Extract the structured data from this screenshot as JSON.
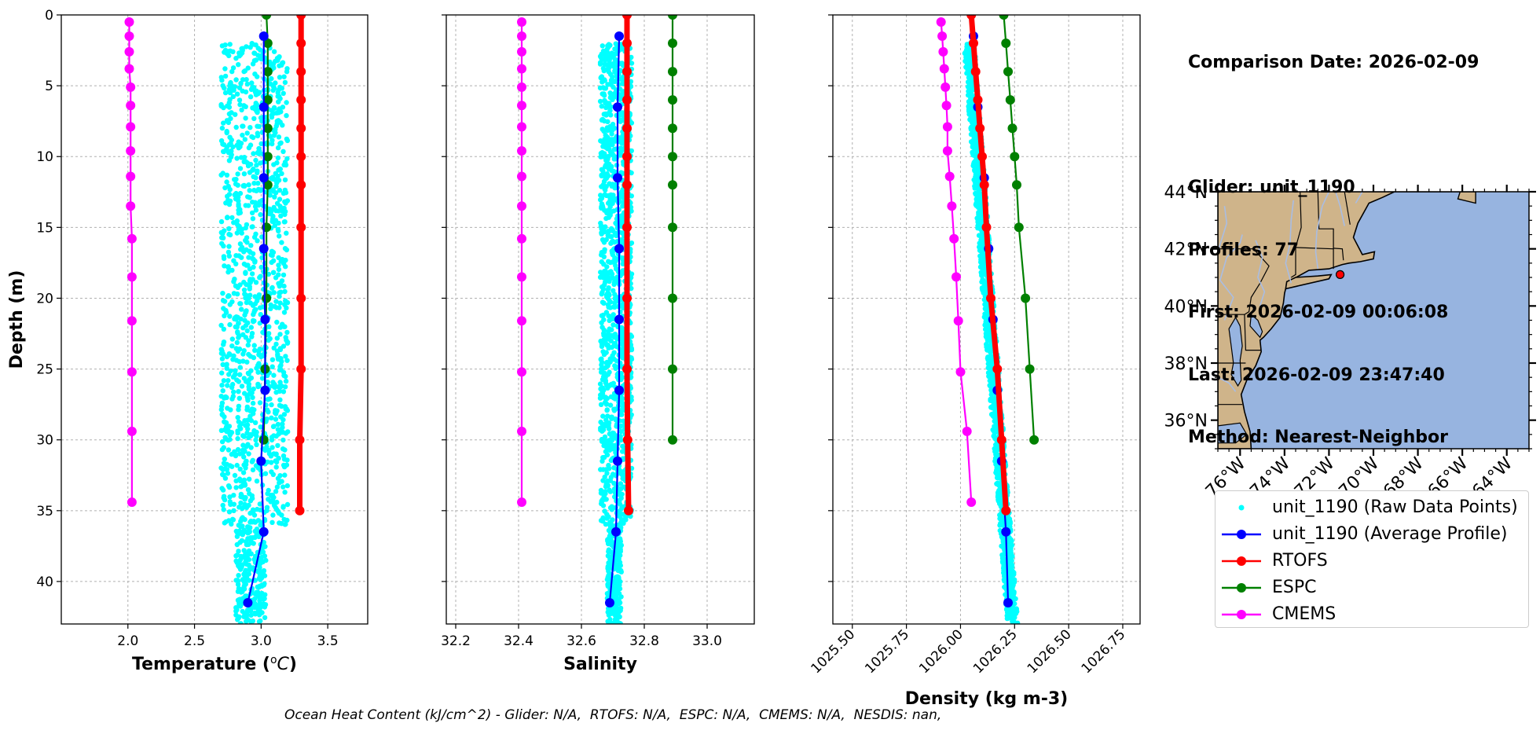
{
  "info": {
    "comparison": "Comparison Date: 2026-02-09",
    "glider": "Glider: unit_1190",
    "profiles": "Profiles: 77",
    "first": "First: 2026-02-09 00:06:08",
    "last": "Last: 2026-02-09 23:47:40",
    "method": "Method: Nearest-Neighbor"
  },
  "footer": "Ocean Heat Content (kJ/cm^2) - Glider: N/A,  RTOFS: N/A,  ESPC: N/A,  CMEMS: N/A,  NESDIS: nan,",
  "colors": {
    "raw": "#00ffff",
    "glider": "#0000ff",
    "rtofs": "#ff0000",
    "espc": "#008000",
    "cmems": "#ff00ff",
    "land": "#cfb48a",
    "ocean": "#97b4e0",
    "rivers": "#a9bde3"
  },
  "legend": [
    {
      "label": "unit_1190 (Raw Data Points)",
      "key": "raw",
      "style": "dots"
    },
    {
      "label": "unit_1190 (Average Profile)",
      "key": "glider",
      "style": "line"
    },
    {
      "label": "RTOFS",
      "key": "rtofs",
      "style": "line"
    },
    {
      "label": "ESPC",
      "key": "espc",
      "style": "line"
    },
    {
      "label": "CMEMS",
      "key": "cmems",
      "style": "line"
    }
  ],
  "chart_data": [
    {
      "type": "line",
      "xlabel": "Temperature (°C)",
      "ylabel": "Depth (m)",
      "xlim": [
        1.5,
        3.8
      ],
      "ylim": [
        43,
        0
      ],
      "xticks": [
        2.0,
        2.5,
        3.0,
        3.5
      ],
      "xtick_labels": [
        "2.0",
        "2.5",
        "3.0",
        "3.5"
      ],
      "yticks": [
        0,
        5,
        10,
        15,
        20,
        25,
        30,
        35,
        40
      ],
      "grid": true,
      "raw_points": {
        "x_range": [
          2.7,
          3.2
        ],
        "depth_range": [
          2,
          43
        ]
      },
      "series": [
        {
          "name": "unit_1190 (Average Profile)",
          "key": "glider",
          "depth": [
            1.5,
            6.5,
            11.5,
            16.5,
            21.5,
            26.5,
            31.5,
            36.5,
            41.5
          ],
          "values": [
            3.02,
            3.02,
            3.02,
            3.02,
            3.03,
            3.03,
            3.0,
            3.02,
            2.9
          ]
        },
        {
          "name": "RTOFS",
          "key": "rtofs",
          "depth": [
            0,
            2,
            4,
            6,
            8,
            10,
            12,
            15,
            20,
            25,
            30,
            35
          ],
          "values": [
            3.3,
            3.3,
            3.3,
            3.3,
            3.3,
            3.3,
            3.3,
            3.3,
            3.3,
            3.3,
            3.29,
            3.29
          ]
        },
        {
          "name": "ESPC",
          "key": "espc",
          "depth": [
            0,
            2,
            4,
            6,
            8,
            10,
            12,
            15,
            20,
            25,
            30
          ],
          "values": [
            3.04,
            3.05,
            3.05,
            3.05,
            3.05,
            3.05,
            3.05,
            3.04,
            3.04,
            3.03,
            3.02
          ]
        },
        {
          "name": "CMEMS",
          "key": "cmems",
          "depth": [
            0.5,
            1.5,
            2.6,
            3.8,
            5.1,
            6.4,
            7.9,
            9.6,
            11.4,
            13.5,
            15.8,
            18.5,
            21.6,
            25.2,
            29.4,
            34.4
          ],
          "values": [
            2.01,
            2.01,
            2.01,
            2.01,
            2.02,
            2.02,
            2.02,
            2.02,
            2.02,
            2.02,
            2.03,
            2.03,
            2.03,
            2.03,
            2.03,
            2.03
          ]
        }
      ]
    },
    {
      "type": "line",
      "xlabel": "Salinity",
      "ylabel": "",
      "xlim": [
        32.17,
        33.15
      ],
      "ylim": [
        43,
        0
      ],
      "xticks": [
        32.2,
        32.4,
        32.6,
        32.8,
        33.0
      ],
      "xtick_labels": [
        "32.2",
        "32.4",
        "32.6",
        "32.8",
        "33.0"
      ],
      "yticks": [
        0,
        5,
        10,
        15,
        20,
        25,
        30,
        35,
        40
      ],
      "grid": true,
      "raw_points": {
        "x_range": [
          32.66,
          32.76
        ],
        "depth_range": [
          2,
          43
        ]
      },
      "series": [
        {
          "name": "unit_1190 (Average Profile)",
          "key": "glider",
          "depth": [
            1.5,
            6.5,
            11.5,
            16.5,
            21.5,
            26.5,
            31.5,
            36.5,
            41.5
          ],
          "values": [
            32.72,
            32.715,
            32.715,
            32.72,
            32.72,
            32.72,
            32.715,
            32.71,
            32.69
          ]
        },
        {
          "name": "RTOFS",
          "key": "rtofs",
          "depth": [
            0,
            2,
            4,
            6,
            8,
            10,
            12,
            15,
            20,
            25,
            30,
            35
          ],
          "values": [
            32.745,
            32.745,
            32.745,
            32.745,
            32.745,
            32.745,
            32.745,
            32.745,
            32.745,
            32.745,
            32.747,
            32.75
          ]
        },
        {
          "name": "ESPC",
          "key": "espc",
          "depth": [
            0,
            2,
            4,
            6,
            8,
            10,
            12,
            15,
            20,
            25,
            30
          ],
          "values": [
            32.89,
            32.89,
            32.89,
            32.89,
            32.89,
            32.89,
            32.89,
            32.89,
            32.89,
            32.89,
            32.89
          ]
        },
        {
          "name": "CMEMS",
          "key": "cmems",
          "depth": [
            0.5,
            1.5,
            2.6,
            3.8,
            5.1,
            6.4,
            7.9,
            9.6,
            11.4,
            13.5,
            15.8,
            18.5,
            21.6,
            25.2,
            29.4,
            34.4
          ],
          "values": [
            32.41,
            32.41,
            32.41,
            32.41,
            32.41,
            32.41,
            32.41,
            32.41,
            32.41,
            32.41,
            32.41,
            32.41,
            32.41,
            32.41,
            32.41,
            32.41
          ]
        }
      ]
    },
    {
      "type": "line",
      "xlabel": "Density (kg m-3)",
      "ylabel": "",
      "xlim": [
        1025.41,
        1026.83
      ],
      "ylim": [
        43,
        0
      ],
      "xticks": [
        1025.5,
        1025.75,
        1026.0,
        1026.25,
        1026.5,
        1026.75
      ],
      "xtick_labels": [
        "1025.50",
        "1025.75",
        "1026.00",
        "1026.25",
        "1026.50",
        "1026.75"
      ],
      "yticks": [
        0,
        5,
        10,
        15,
        20,
        25,
        30,
        35,
        40
      ],
      "grid": true,
      "raw_points": {
        "trend": [
          [
            1026.04,
            2
          ],
          [
            1026.24,
            43
          ]
        ]
      },
      "series": [
        {
          "name": "unit_1190 (Average Profile)",
          "key": "glider",
          "depth": [
            1.5,
            6.5,
            11.5,
            16.5,
            21.5,
            26.5,
            31.5,
            36.5,
            41.5
          ],
          "values": [
            1026.06,
            1026.08,
            1026.11,
            1026.13,
            1026.15,
            1026.17,
            1026.19,
            1026.21,
            1026.22
          ]
        },
        {
          "name": "RTOFS",
          "key": "rtofs",
          "depth": [
            0,
            2,
            4,
            6,
            8,
            10,
            12,
            15,
            20,
            25,
            30,
            35
          ],
          "values": [
            1026.05,
            1026.06,
            1026.07,
            1026.08,
            1026.09,
            1026.1,
            1026.11,
            1026.12,
            1026.14,
            1026.17,
            1026.19,
            1026.21
          ]
        },
        {
          "name": "ESPC",
          "key": "espc",
          "depth": [
            0,
            2,
            4,
            6,
            8,
            10,
            12,
            15,
            20,
            25,
            30
          ],
          "values": [
            1026.2,
            1026.21,
            1026.22,
            1026.23,
            1026.24,
            1026.25,
            1026.26,
            1026.27,
            1026.3,
            1026.32,
            1026.34
          ]
        },
        {
          "name": "CMEMS",
          "key": "cmems",
          "depth": [
            0.5,
            1.5,
            2.6,
            3.8,
            5.1,
            6.4,
            7.9,
            9.6,
            11.4,
            13.5,
            15.8,
            18.5,
            21.6,
            25.2,
            29.4,
            34.4
          ],
          "values": [
            1025.91,
            1025.915,
            1025.92,
            1025.925,
            1025.93,
            1025.935,
            1025.94,
            1025.94,
            1025.95,
            1025.96,
            1025.97,
            1025.98,
            1025.99,
            1026.0,
            1026.03,
            1026.05
          ]
        }
      ]
    }
  ],
  "map": {
    "lat_labels": [
      "44°N",
      "42°N",
      "40°N",
      "38°N",
      "36°N"
    ],
    "lat_values": [
      44,
      42,
      40,
      38,
      36
    ],
    "lon_labels": [
      "76°W",
      "74°W",
      "72°W",
      "70°W",
      "68°W",
      "66°W",
      "64°W"
    ],
    "lon_values": [
      -76,
      -74,
      -72,
      -70,
      -68,
      -66,
      -64
    ],
    "extent": {
      "lon": [
        -77,
        -63
      ],
      "lat": [
        35,
        44
      ]
    },
    "glider_position": {
      "lon": -71.5,
      "lat": 41.1
    }
  }
}
